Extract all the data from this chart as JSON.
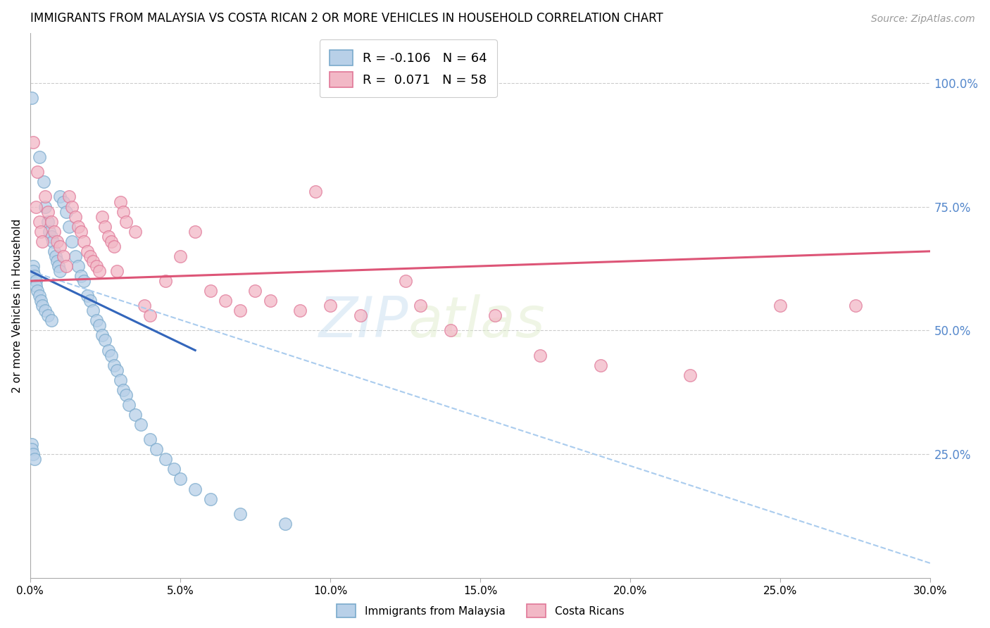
{
  "title": "IMMIGRANTS FROM MALAYSIA VS COSTA RICAN 2 OR MORE VEHICLES IN HOUSEHOLD CORRELATION CHART",
  "source": "Source: ZipAtlas.com",
  "ylabel": "2 or more Vehicles in Household",
  "xlabel_ticks": [
    "0.0%",
    "5.0%",
    "10.0%",
    "15.0%",
    "20.0%",
    "25.0%",
    "30.0%"
  ],
  "xlabel_vals": [
    0.0,
    5.0,
    10.0,
    15.0,
    20.0,
    25.0,
    30.0
  ],
  "ylabel_right_ticks": [
    "100.0%",
    "75.0%",
    "50.0%",
    "25.0%"
  ],
  "ylabel_right_vals": [
    100.0,
    75.0,
    50.0,
    25.0
  ],
  "ylim": [
    0,
    110
  ],
  "xlim": [
    0,
    30
  ],
  "blue_R": "-0.106",
  "blue_N": "64",
  "pink_R": "0.071",
  "pink_N": "58",
  "blue_color": "#b8d0e8",
  "blue_edge": "#7aaacc",
  "pink_color": "#f2b8c6",
  "pink_edge": "#e07898",
  "trend_blue_color": "#3366bb",
  "trend_pink_color": "#dd5577",
  "trend_blue_dashed_color": "#aaccee",
  "background_color": "#ffffff",
  "grid_color": "#cccccc",
  "right_axis_color": "#5588cc",
  "legend_label_blue": "Immigrants from Malaysia",
  "legend_label_pink": "Costa Ricans",
  "blue_x": [
    0.05,
    0.1,
    0.1,
    0.15,
    0.2,
    0.2,
    0.25,
    0.3,
    0.3,
    0.35,
    0.4,
    0.45,
    0.5,
    0.5,
    0.6,
    0.6,
    0.65,
    0.7,
    0.7,
    0.75,
    0.8,
    0.85,
    0.9,
    0.95,
    1.0,
    1.0,
    1.1,
    1.2,
    1.3,
    1.4,
    1.5,
    1.6,
    1.7,
    1.8,
    1.9,
    2.0,
    2.1,
    2.2,
    2.3,
    2.4,
    2.5,
    2.6,
    2.7,
    2.8,
    2.9,
    3.0,
    3.1,
    3.2,
    3.3,
    3.5,
    3.7,
    4.0,
    4.2,
    4.5,
    4.8,
    5.0,
    5.5,
    6.0,
    7.0,
    8.5,
    0.05,
    0.05,
    0.1,
    0.15
  ],
  "blue_y": [
    97,
    63,
    62,
    61,
    60,
    59,
    58,
    57,
    85,
    56,
    55,
    80,
    75,
    54,
    72,
    53,
    70,
    69,
    52,
    68,
    66,
    65,
    64,
    63,
    62,
    77,
    76,
    74,
    71,
    68,
    65,
    63,
    61,
    60,
    57,
    56,
    54,
    52,
    51,
    49,
    48,
    46,
    45,
    43,
    42,
    40,
    38,
    37,
    35,
    33,
    31,
    28,
    26,
    24,
    22,
    20,
    18,
    16,
    13,
    11,
    27,
    26,
    25,
    24
  ],
  "pink_x": [
    0.1,
    0.2,
    0.3,
    0.35,
    0.4,
    0.5,
    0.6,
    0.7,
    0.8,
    0.9,
    1.0,
    1.1,
    1.2,
    1.3,
    1.4,
    1.5,
    1.6,
    1.7,
    1.8,
    1.9,
    2.0,
    2.1,
    2.2,
    2.3,
    2.4,
    2.5,
    2.6,
    2.7,
    2.8,
    2.9,
    3.0,
    3.1,
    3.2,
    3.5,
    3.8,
    4.0,
    4.5,
    5.0,
    5.5,
    6.0,
    6.5,
    7.0,
    7.5,
    8.0,
    9.0,
    9.5,
    10.0,
    11.0,
    12.5,
    13.0,
    14.0,
    15.5,
    17.0,
    19.0,
    22.0,
    25.0,
    27.5,
    0.25
  ],
  "pink_y": [
    88,
    75,
    72,
    70,
    68,
    77,
    74,
    72,
    70,
    68,
    67,
    65,
    63,
    77,
    75,
    73,
    71,
    70,
    68,
    66,
    65,
    64,
    63,
    62,
    73,
    71,
    69,
    68,
    67,
    62,
    76,
    74,
    72,
    70,
    55,
    53,
    60,
    65,
    70,
    58,
    56,
    54,
    58,
    56,
    54,
    78,
    55,
    53,
    60,
    55,
    50,
    53,
    45,
    43,
    41,
    55,
    55,
    82
  ],
  "blue_trend_x0": 0.0,
  "blue_trend_y0": 62.0,
  "blue_trend_x1": 5.5,
  "blue_trend_y1": 46.0,
  "blue_dashed_x0": 0.0,
  "blue_dashed_y0": 62.0,
  "blue_dashed_x1": 30.0,
  "blue_dashed_y1": 3.0,
  "pink_trend_x0": 0.0,
  "pink_trend_y0": 60.0,
  "pink_trend_x1": 30.0,
  "pink_trend_y1": 66.0
}
